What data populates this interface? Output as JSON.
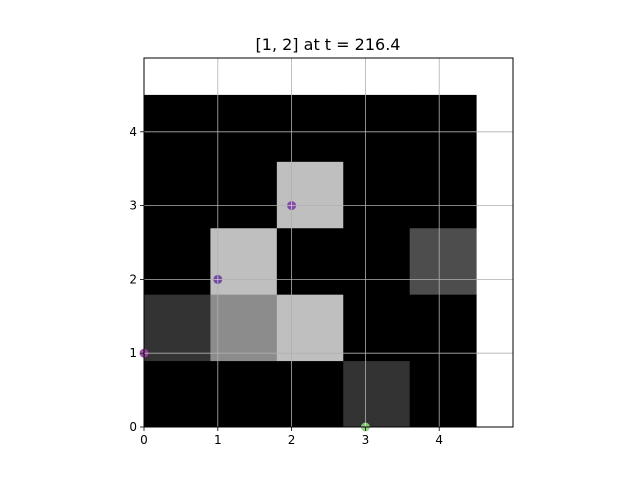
{
  "chart_data": {
    "type": "heatmap",
    "title": "[1, 2] at t = 216.4",
    "xlabel": "",
    "ylabel": "",
    "xlim": [
      0,
      5
    ],
    "ylim": [
      0,
      5
    ],
    "xticks": [
      "0",
      "1",
      "2",
      "3",
      "4"
    ],
    "yticks": [
      "0",
      "1",
      "2",
      "3",
      "4"
    ],
    "grid": true,
    "colormap": "gray",
    "grid_extent": {
      "x_start": 0,
      "x_end": 4.5,
      "y_start": 0,
      "y_end": 4.5
    },
    "rows_bottom_to_top": [
      [
        0.0,
        0.0,
        0.0,
        0.2,
        0.0
      ],
      [
        0.2,
        0.55,
        0.75,
        0.0,
        0.0
      ],
      [
        0.0,
        0.75,
        0.0,
        0.0,
        0.3
      ],
      [
        0.0,
        0.0,
        0.75,
        0.0,
        0.0
      ],
      [
        0.0,
        0.0,
        0.0,
        0.0,
        0.0
      ]
    ],
    "markers": [
      {
        "x": 0,
        "y": 1,
        "color": "#9b3fa0",
        "style": "plus-circle"
      },
      {
        "x": 1,
        "y": 2,
        "color": "#6a3d9a",
        "style": "plus-circle"
      },
      {
        "x": 2,
        "y": 3,
        "color": "#7a3fa0",
        "style": "plus-circle"
      },
      {
        "x": 3,
        "y": 0,
        "color": "#8fd07a",
        "style": "plus-circle"
      }
    ]
  }
}
